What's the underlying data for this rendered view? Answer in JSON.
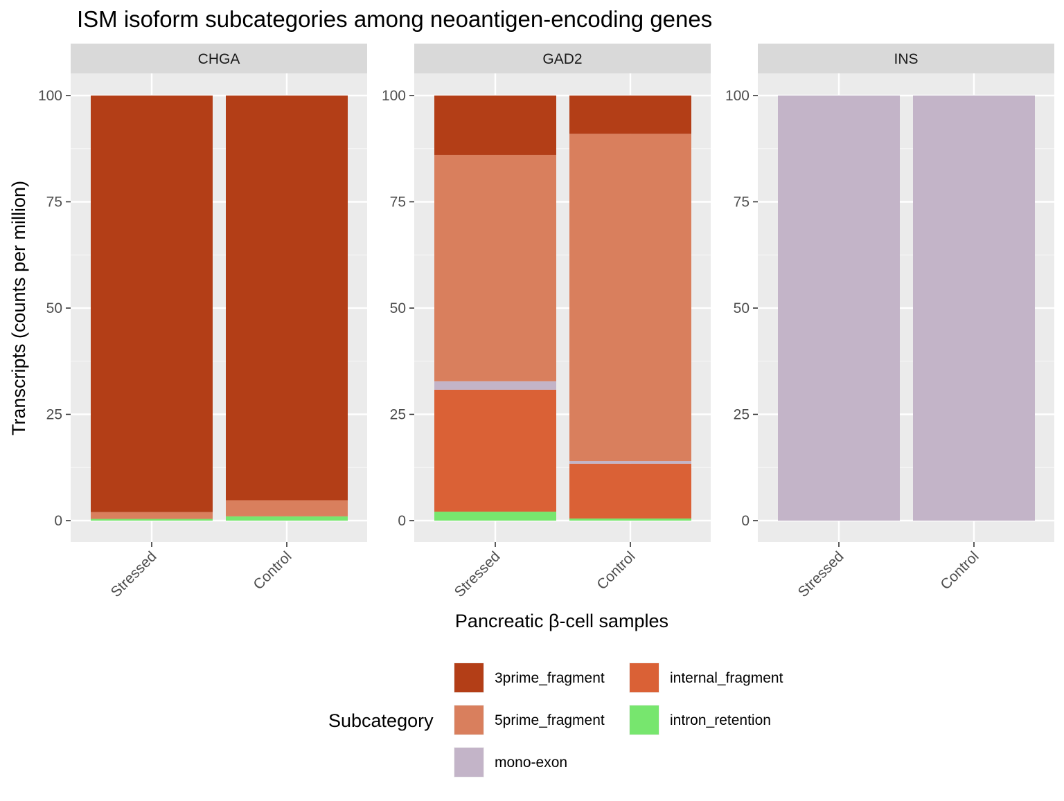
{
  "chart_data": {
    "type": "bar",
    "stacked": true,
    "title": "ISM isoform subcategories among neoantigen-encoding genes",
    "xlabel": "Pancreatic β-cell samples",
    "ylabel": "Transcripts (counts per million)",
    "ylim": [
      -5,
      105
    ],
    "yticks": [
      0,
      25,
      50,
      75,
      100
    ],
    "categories": [
      "Stressed",
      "Control"
    ],
    "grid": true,
    "legend": {
      "title": "Subcategory",
      "position": "bottom",
      "entries": [
        "3prime_fragment",
        "5prime_fragment",
        "mono-exon",
        "internal_fragment",
        "intron_retention"
      ]
    },
    "colors": {
      "3prime_fragment": "#B33E17",
      "5prime_fragment": "#D97F5D",
      "mono-exon": "#C3B4C8",
      "internal_fragment": "#DA6136",
      "intron_retention": "#77E66E"
    },
    "stack_order_bottom_to_top": [
      "intron_retention",
      "internal_fragment",
      "mono-exon",
      "5prime_fragment",
      "3prime_fragment"
    ],
    "facets": [
      {
        "name": "CHGA",
        "series": [
          {
            "name": "3prime_fragment",
            "values": [
              98.0,
              95.2
            ]
          },
          {
            "name": "5prime_fragment",
            "values": [
              1.6,
              3.8
            ]
          },
          {
            "name": "mono-exon",
            "values": [
              0,
              0
            ]
          },
          {
            "name": "internal_fragment",
            "values": [
              0,
              0
            ]
          },
          {
            "name": "intron_retention",
            "values": [
              0.4,
              1.0
            ]
          }
        ]
      },
      {
        "name": "GAD2",
        "series": [
          {
            "name": "3prime_fragment",
            "values": [
              14.0,
              9.0
            ]
          },
          {
            "name": "5prime_fragment",
            "values": [
              53.2,
              77.0
            ]
          },
          {
            "name": "mono-exon",
            "values": [
              2.0,
              0.6
            ]
          },
          {
            "name": "internal_fragment",
            "values": [
              28.7,
              12.9
            ]
          },
          {
            "name": "intron_retention",
            "values": [
              2.1,
              0.5
            ]
          }
        ]
      },
      {
        "name": "INS",
        "series": [
          {
            "name": "3prime_fragment",
            "values": [
              0,
              0
            ]
          },
          {
            "name": "5prime_fragment",
            "values": [
              0,
              0
            ]
          },
          {
            "name": "mono-exon",
            "values": [
              100,
              100
            ]
          },
          {
            "name": "internal_fragment",
            "values": [
              0,
              0
            ]
          },
          {
            "name": "intron_retention",
            "values": [
              0,
              0
            ]
          }
        ]
      }
    ]
  }
}
